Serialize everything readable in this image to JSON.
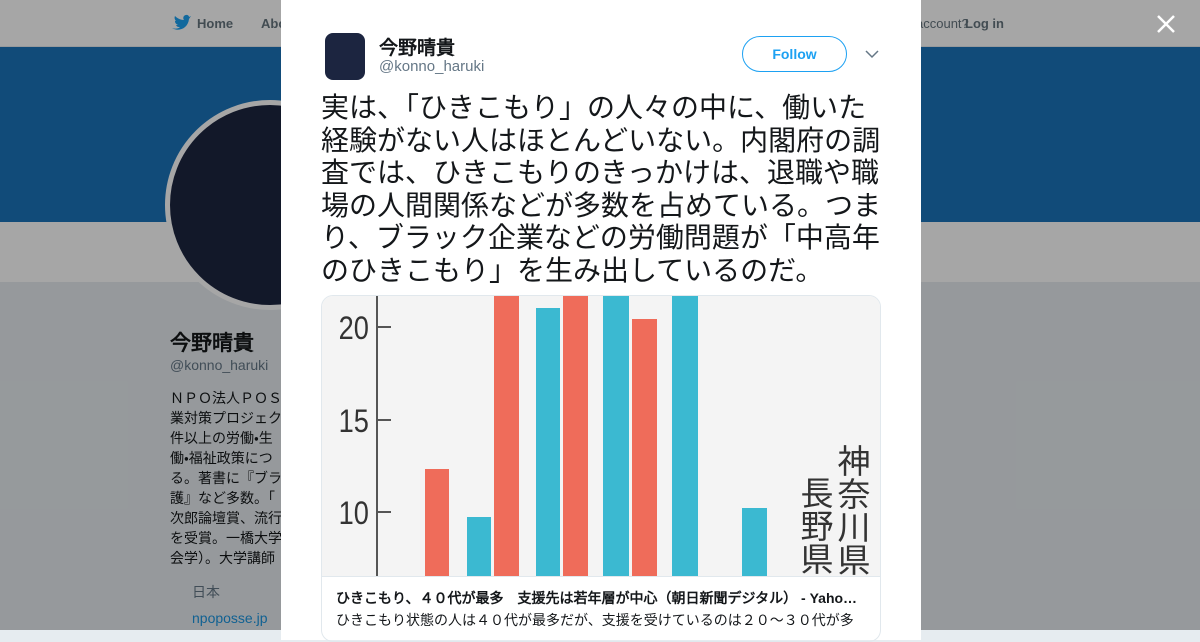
{
  "nav": {
    "home": "Home",
    "about": "Abo",
    "account": "account?",
    "login": "Log in"
  },
  "profile": {
    "name": "今野晴貴",
    "handle": "@konno_haruki",
    "bio_lines": [
      "ＮＰＯ法人ＰＯＳ",
      "業対策プロジェク",
      "件以上の労働・生",
      "働・福祉政策につ",
      "る。著書に『ブラ",
      "護』など多数。「",
      "次郎論壇賞、流行",
      "を受賞。一橋大学",
      "会学）。大学講師"
    ],
    "location": "日本",
    "url": "npoposse.jp"
  },
  "tweet": {
    "name": "今野晴貴",
    "handle": "@konno_haruki",
    "follow": "Follow",
    "text_lines": [
      "実は、「ひきこもり」の人々の中に、働いた",
      "経験がない人はほとんどいない。内閣府の調",
      "査では、ひきこもりのきっかけは、退職や職",
      "場の人間関係などが多数を占めている。つま",
      "り、ブラック企業などの労働問題が「中高年",
      "のひきこもり」を生み出しているのだ。"
    ],
    "card": {
      "image": {
        "ticks": [
          "20",
          "15",
          "10"
        ],
        "labels": [
          "神奈川県",
          "長野県"
        ]
      },
      "title": "ひきこもり、４０代が最多　支援先は若年層が中心（朝日新聞デジタル） - Yaho…",
      "description": "ひきこもり状態の人は４０代が最多だが、支援を受けているのは２０～３０代が多"
    }
  }
}
